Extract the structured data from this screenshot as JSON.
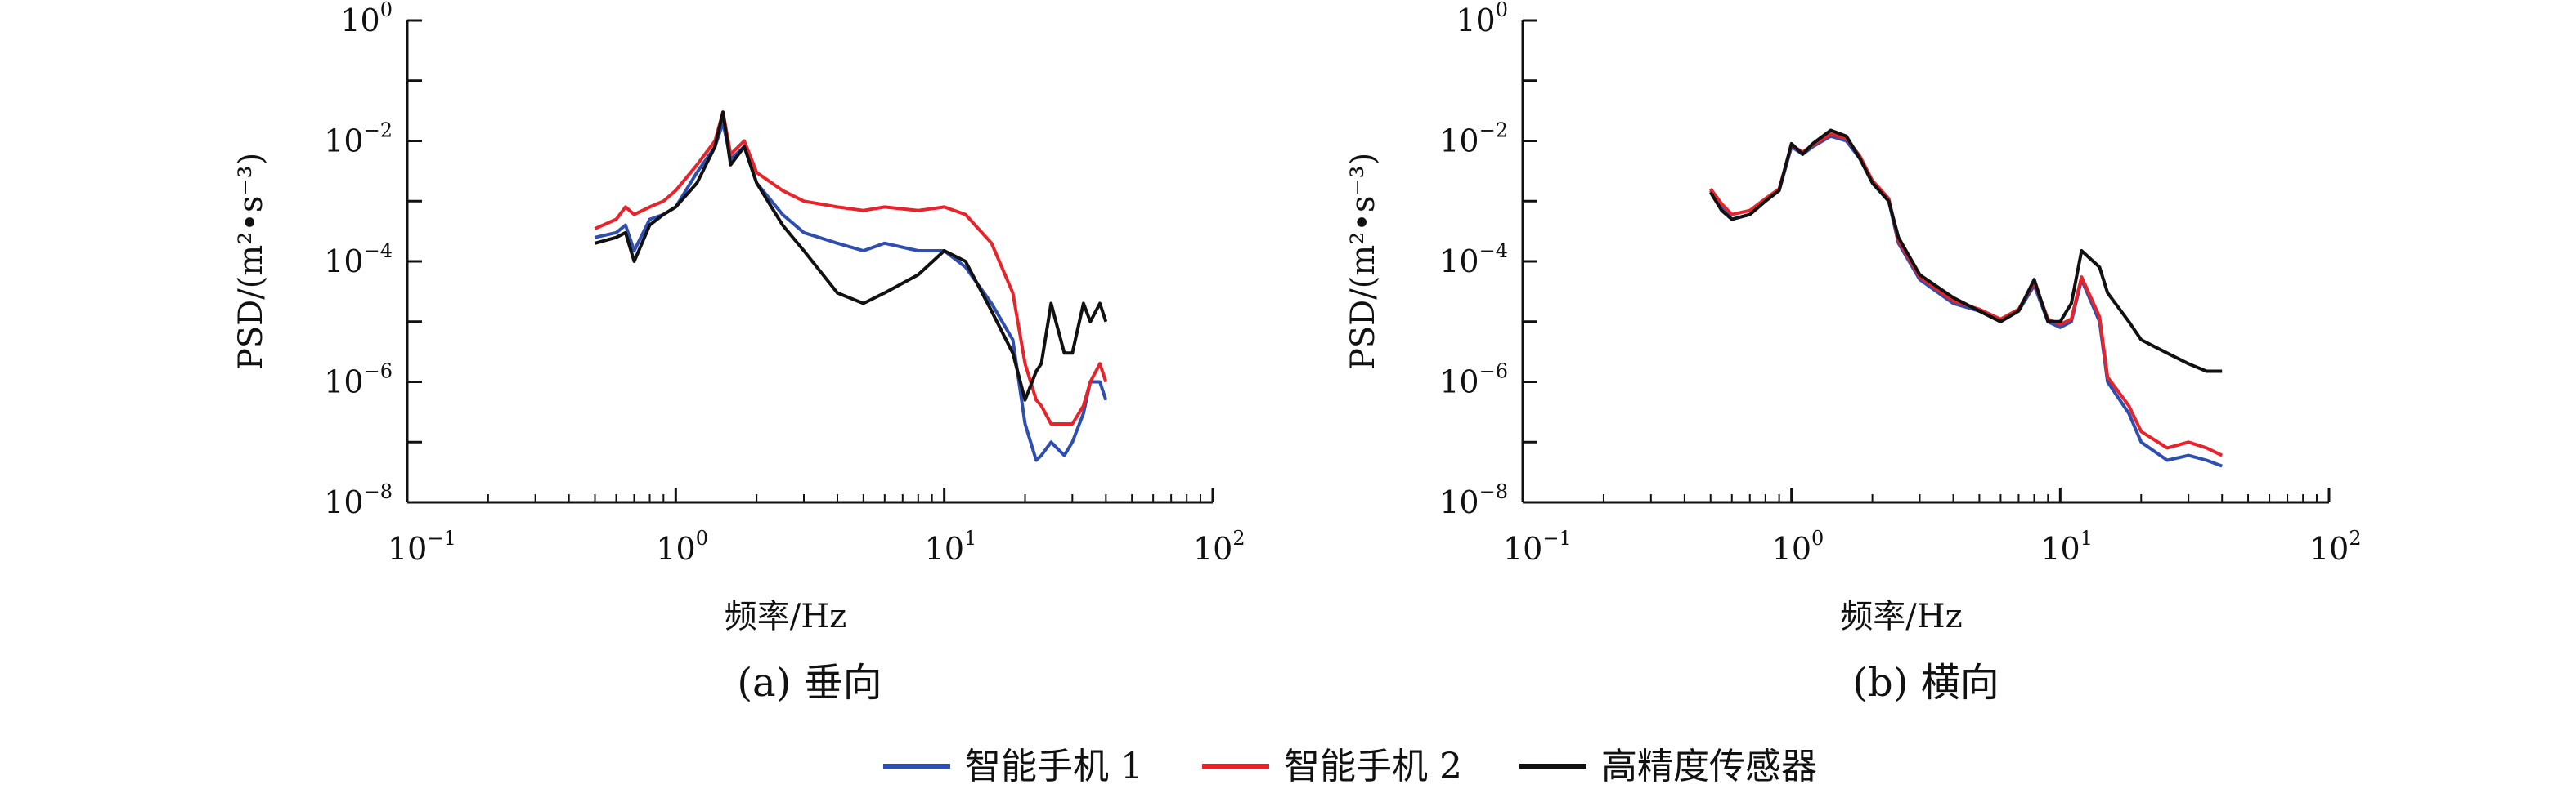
{
  "chart_data": [
    {
      "type": "line",
      "caption": "(a) 垂向",
      "xlabel": "频率/Hz",
      "ylabel": "PSD/(m²•s⁻³)",
      "xscale": "log",
      "yscale": "log",
      "xlim": [
        0.1,
        100
      ],
      "ylim": [
        1e-08,
        1
      ],
      "xticks": [
        {
          "base": "10",
          "exp": "−1"
        },
        {
          "base": "10",
          "exp": "0"
        },
        {
          "base": "10",
          "exp": "1"
        },
        {
          "base": "10",
          "exp": "2"
        }
      ],
      "yticks": [
        {
          "base": "10",
          "exp": "0"
        },
        {
          "base": "10",
          "exp": "−2"
        },
        {
          "base": "10",
          "exp": "−4"
        },
        {
          "base": "10",
          "exp": "−6"
        },
        {
          "base": "10",
          "exp": "−8"
        }
      ],
      "series": [
        {
          "name": "智能手机 1",
          "color": "#2f4fb0",
          "x": [
            0.5,
            0.6,
            0.65,
            0.7,
            0.8,
            0.9,
            1.0,
            1.2,
            1.4,
            1.5,
            1.6,
            1.8,
            2.0,
            2.5,
            3.0,
            4.0,
            5.0,
            6.0,
            8.0,
            10,
            12,
            15,
            18,
            20,
            22,
            23,
            25,
            28,
            30,
            33,
            35,
            38,
            40
          ],
          "y": [
            0.00025,
            0.0003,
            0.0004,
            0.00015,
            0.0005,
            0.0006,
            0.0008,
            0.003,
            0.008,
            0.02,
            0.005,
            0.008,
            0.002,
            0.0006,
            0.0003,
            0.0002,
            0.00015,
            0.0002,
            0.00015,
            0.00015,
            8e-05,
            2e-05,
            5e-06,
            2e-07,
            5e-08,
            6e-08,
            1e-07,
            6e-08,
            1e-07,
            3e-07,
            1e-06,
            1e-06,
            5e-07
          ]
        },
        {
          "name": "智能手机 2",
          "color": "#e8232a",
          "x": [
            0.5,
            0.6,
            0.65,
            0.7,
            0.8,
            0.9,
            1.0,
            1.2,
            1.4,
            1.5,
            1.6,
            1.8,
            2.0,
            2.5,
            3.0,
            4.0,
            5.0,
            6.0,
            8.0,
            10,
            12,
            15,
            18,
            20,
            22,
            23,
            25,
            28,
            30,
            33,
            35,
            38,
            40
          ],
          "y": [
            0.00035,
            0.0005,
            0.0008,
            0.0006,
            0.0008,
            0.001,
            0.0015,
            0.004,
            0.01,
            0.03,
            0.006,
            0.01,
            0.003,
            0.0015,
            0.001,
            0.0008,
            0.0007,
            0.0008,
            0.0007,
            0.0008,
            0.0006,
            0.0002,
            3e-05,
            2e-06,
            5e-07,
            4e-07,
            2e-07,
            2e-07,
            2e-07,
            4e-07,
            1e-06,
            2e-06,
            1e-06
          ]
        },
        {
          "name": "高精度传感器",
          "color": "#111111",
          "x": [
            0.5,
            0.6,
            0.65,
            0.7,
            0.8,
            0.9,
            1.0,
            1.2,
            1.4,
            1.5,
            1.6,
            1.8,
            2.0,
            2.5,
            3.0,
            4.0,
            5.0,
            6.0,
            8.0,
            10,
            12,
            15,
            18,
            20,
            22,
            23,
            25,
            28,
            30,
            33,
            35,
            38,
            40
          ],
          "y": [
            0.0002,
            0.00025,
            0.0003,
            0.0001,
            0.0004,
            0.0006,
            0.0008,
            0.002,
            0.008,
            0.03,
            0.004,
            0.008,
            0.002,
            0.0004,
            0.00015,
            3e-05,
            2e-05,
            3e-05,
            6e-05,
            0.00015,
            0.0001,
            1.5e-05,
            3e-06,
            5e-07,
            1.5e-06,
            2e-06,
            2e-05,
            3e-06,
            3e-06,
            2e-05,
            1e-05,
            2e-05,
            1e-05
          ]
        }
      ]
    },
    {
      "type": "line",
      "caption": "(b) 横向",
      "xlabel": "频率/Hz",
      "ylabel": "PSD/(m²•s⁻³)",
      "xscale": "log",
      "yscale": "log",
      "xlim": [
        0.1,
        100
      ],
      "ylim": [
        1e-08,
        1
      ],
      "xticks": [
        {
          "base": "10",
          "exp": "−1"
        },
        {
          "base": "10",
          "exp": "0"
        },
        {
          "base": "10",
          "exp": "1"
        },
        {
          "base": "10",
          "exp": "2"
        }
      ],
      "yticks": [
        {
          "base": "10",
          "exp": "0"
        },
        {
          "base": "10",
          "exp": "−2"
        },
        {
          "base": "10",
          "exp": "−4"
        },
        {
          "base": "10",
          "exp": "−6"
        },
        {
          "base": "10",
          "exp": "−8"
        }
      ],
      "series": [
        {
          "name": "智能手机 1",
          "color": "#2f4fb0",
          "x": [
            0.5,
            0.55,
            0.6,
            0.7,
            0.8,
            0.9,
            1.0,
            1.1,
            1.2,
            1.4,
            1.6,
            1.8,
            2.0,
            2.3,
            2.5,
            3.0,
            4.0,
            5.0,
            6.0,
            7.0,
            8.0,
            9.0,
            10,
            11,
            12,
            14,
            15,
            18,
            20,
            25,
            30,
            35,
            40
          ],
          "y": [
            0.0015,
            0.0008,
            0.0005,
            0.0006,
            0.001,
            0.0015,
            0.008,
            0.006,
            0.008,
            0.012,
            0.01,
            0.005,
            0.002,
            0.001,
            0.0002,
            5e-05,
            2e-05,
            1.5e-05,
            1e-05,
            1.5e-05,
            4e-05,
            1e-05,
            8e-06,
            1e-05,
            5e-05,
            1e-05,
            1e-06,
            3e-07,
            1e-07,
            5e-08,
            6e-08,
            5e-08,
            4e-08
          ]
        },
        {
          "name": "智能手机 2",
          "color": "#e8232a",
          "x": [
            0.5,
            0.55,
            0.6,
            0.7,
            0.8,
            0.9,
            1.0,
            1.1,
            1.2,
            1.4,
            1.6,
            1.8,
            2.0,
            2.3,
            2.5,
            3.0,
            4.0,
            5.0,
            6.0,
            7.0,
            8.0,
            9.0,
            10,
            11,
            12,
            14,
            15,
            18,
            20,
            25,
            30,
            35,
            40
          ],
          "y": [
            0.0016,
            0.0009,
            0.0006,
            0.0007,
            0.0011,
            0.0016,
            0.0085,
            0.0065,
            0.0085,
            0.013,
            0.011,
            0.0055,
            0.0022,
            0.0011,
            0.00022,
            5.5e-05,
            2.2e-05,
            1.6e-05,
            1.1e-05,
            1.6e-05,
            4.5e-05,
            1.1e-05,
            9e-06,
            1.1e-05,
            5.5e-05,
            1.2e-05,
            1.2e-06,
            4e-07,
            1.5e-07,
            8e-08,
            1e-07,
            8e-08,
            6e-08
          ]
        },
        {
          "name": "高精度传感器",
          "color": "#111111",
          "x": [
            0.5,
            0.55,
            0.6,
            0.7,
            0.8,
            0.9,
            1.0,
            1.1,
            1.2,
            1.4,
            1.6,
            1.8,
            2.0,
            2.3,
            2.5,
            3.0,
            4.0,
            5.0,
            6.0,
            7.0,
            8.0,
            9.0,
            10,
            11,
            12,
            14,
            15,
            18,
            20,
            25,
            30,
            35,
            40
          ],
          "y": [
            0.0014,
            0.0007,
            0.0005,
            0.0006,
            0.001,
            0.0015,
            0.009,
            0.006,
            0.009,
            0.015,
            0.012,
            0.005,
            0.002,
            0.001,
            0.00025,
            6e-05,
            2.5e-05,
            1.5e-05,
            1e-05,
            1.5e-05,
            5e-05,
            1e-05,
            1e-05,
            2e-05,
            0.00015,
            8e-05,
            3e-05,
            1e-05,
            5e-06,
            3e-06,
            2e-06,
            1.5e-06,
            1.5e-06
          ]
        }
      ]
    }
  ],
  "legend": {
    "items": [
      {
        "name": "智能手机 1",
        "color": "#2f4fb0"
      },
      {
        "name": "智能手机 2",
        "color": "#e8232a"
      },
      {
        "name": "高精度传感器",
        "color": "#111111"
      }
    ]
  }
}
